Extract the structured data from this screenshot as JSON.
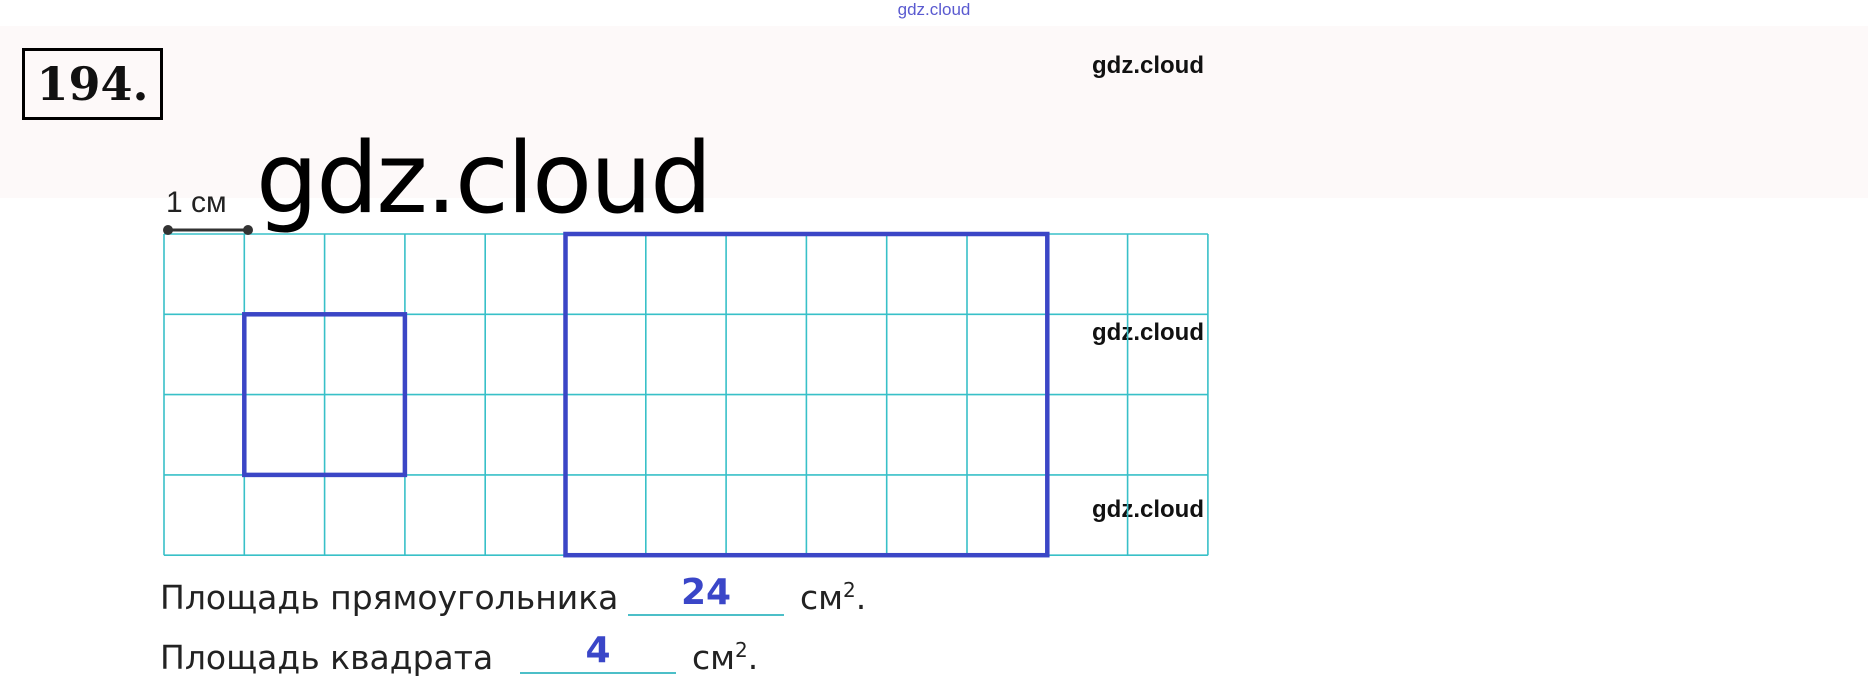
{
  "watermarks": {
    "top": "gdz.cloud",
    "big": "gdz.cloud",
    "side": [
      "gdz.cloud",
      "gdz.cloud",
      "gdz.cloud"
    ]
  },
  "exercise_number": "194.",
  "scale": {
    "label": "1 см"
  },
  "grid": {
    "columns": 13,
    "rows": 4,
    "line_color": "#38c0c8",
    "shape_color": "#3b46c6",
    "square": {
      "col": 1,
      "row": 1,
      "width_cells": 2,
      "height_cells": 2
    },
    "rectangle": {
      "col": 5,
      "row": 0,
      "width_cells": 6,
      "height_cells": 4
    }
  },
  "answers": [
    {
      "label": "Площадь прямоугольника",
      "value": "24",
      "unit": "см",
      "exp": "2",
      "end": "."
    },
    {
      "label": "Площадь квадрата",
      "value": "4",
      "unit": "см",
      "exp": "2",
      "end": "."
    }
  ]
}
